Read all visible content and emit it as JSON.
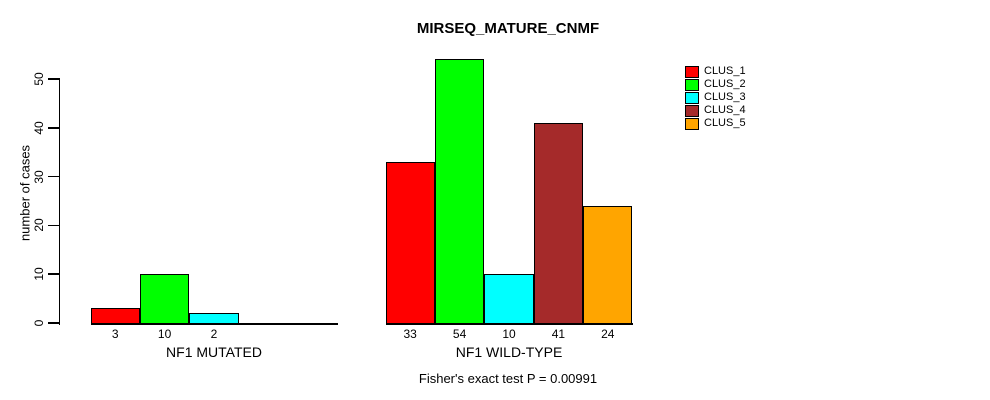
{
  "chart_data": {
    "type": "bar",
    "title": "MIRSEQ_MATURE_CNMF",
    "ylabel": "number of cases",
    "ylim": [
      0,
      50
    ],
    "yticks": [
      0,
      10,
      20,
      30,
      40,
      50
    ],
    "grid": false,
    "legend_position": "top-right",
    "categories": [
      "CLUS_1",
      "CLUS_2",
      "CLUS_3",
      "CLUS_4",
      "CLUS_5"
    ],
    "series_colors": [
      "#FF0000",
      "#00FF00",
      "#00FFFF",
      "#A52A2A",
      "#FFA500"
    ],
    "groups": [
      {
        "label": "NF1 MUTATED",
        "values": [
          3,
          10,
          2,
          0,
          0
        ]
      },
      {
        "label": "NF1 WILD-TYPE",
        "values": [
          33,
          54,
          10,
          41,
          24
        ]
      }
    ],
    "legend": [
      {
        "label": "CLUS_1",
        "color": "#FF0000"
      },
      {
        "label": "CLUS_2",
        "color": "#00FF00"
      },
      {
        "label": "CLUS_3",
        "color": "#00FFFF"
      },
      {
        "label": "CLUS_4",
        "color": "#A52A2A"
      },
      {
        "label": "CLUS_5",
        "color": "#FFA500"
      }
    ],
    "footnote": "Fisher's exact test P = 0.00991"
  }
}
